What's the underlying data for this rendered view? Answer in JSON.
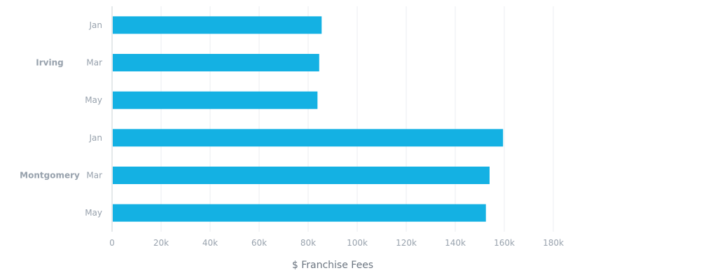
{
  "chart_data": {
    "type": "bar",
    "orientation": "horizontal",
    "groups": [
      {
        "name": "Irving",
        "categories": [
          "Jan",
          "Mar",
          "May"
        ],
        "values": [
          85500,
          84500,
          83800
        ]
      },
      {
        "name": "Montgomery",
        "categories": [
          "Jan",
          "Mar",
          "May"
        ],
        "values": [
          159500,
          154000,
          152500
        ]
      }
    ],
    "xlabel": "$ Franchise Fees",
    "ylabel": "",
    "xlim": [
      0,
      180000
    ],
    "xticks": [
      0,
      20000,
      40000,
      60000,
      80000,
      100000,
      120000,
      140000,
      160000,
      180000
    ],
    "xtick_labels": [
      "0",
      "20k",
      "40k",
      "60k",
      "80k",
      "100k",
      "120k",
      "140k",
      "160k",
      "180k"
    ],
    "grid": true,
    "bar_color": "#14b1e3"
  }
}
